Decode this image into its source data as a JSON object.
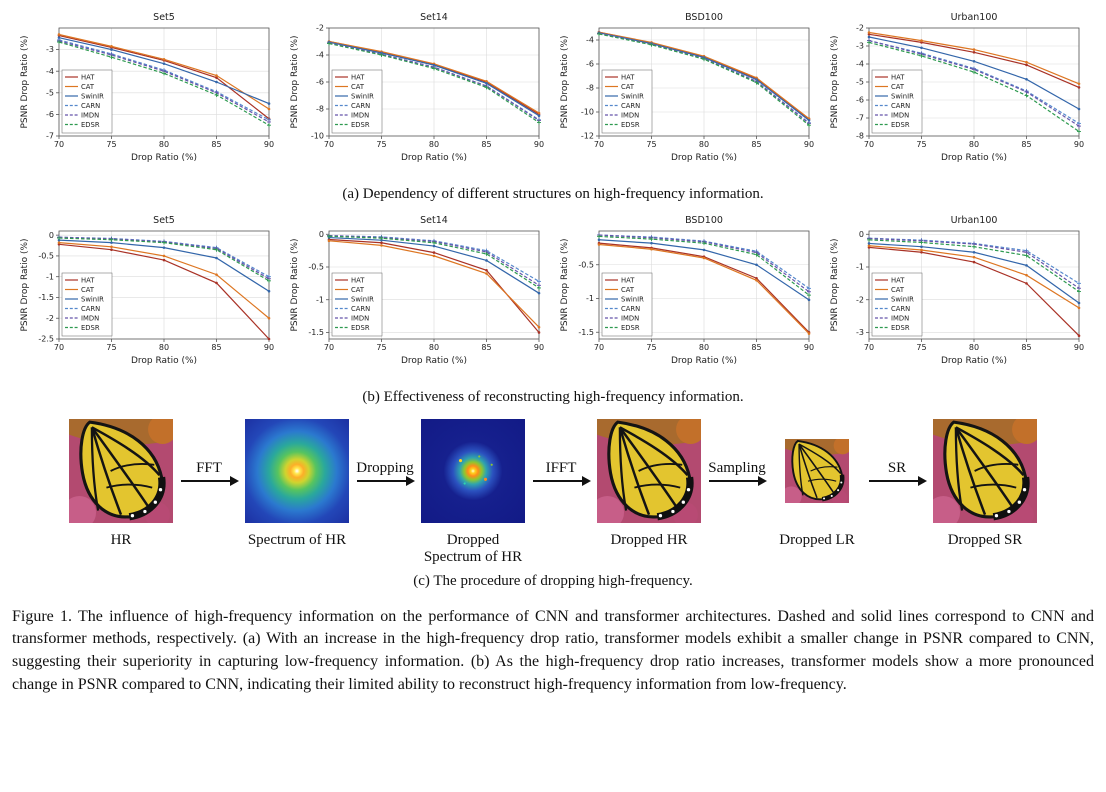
{
  "figure": {
    "caption_a": "(a) Dependency of different structures on high-frequency information.",
    "caption_b": "(b) Effectiveness of reconstructing high-frequency information.",
    "caption_c": "(c) The procedure of dropping high-frequency.",
    "main_caption": "Figure 1. The influence of high-frequency information on the performance of CNN and transformer architectures. Dashed and solid lines correspond to CNN and transformer methods, respectively. (a) With an increase in the high-frequency drop ratio, transformer models exhibit a smaller change in PSNR compared to CNN, suggesting their superiority in capturing low-frequency information. (b) As the high-frequency drop ratio increases, transformer models show a more pronounced change in PSNR compared to CNN, indicating their limited ability to reconstruct high-frequency information from low-frequency."
  },
  "pipeline": {
    "arrows": [
      "FFT",
      "Dropping",
      "IFFT",
      "Sampling",
      "SR"
    ],
    "steps": [
      {
        "label": "HR"
      },
      {
        "label": "Spectrum of HR"
      },
      {
        "label": "Dropped Spectrum of HR"
      },
      {
        "label": "Dropped HR"
      },
      {
        "label": "Dropped LR"
      },
      {
        "label": "Dropped SR"
      }
    ]
  },
  "chart_data": [
    {
      "id": "a-set5",
      "type": "line",
      "title": "Set5",
      "xlabel": "Drop Ratio (%)",
      "ylabel": "PSNR Drop Ratio (%)",
      "x": [
        70,
        75,
        80,
        85,
        90
      ],
      "ylim": [
        -7,
        -2
      ],
      "yticks": [
        -3,
        -4,
        -5,
        -6,
        -7
      ],
      "legend_position": "bottom-left",
      "grid": true,
      "series": [
        {
          "name": "HAT",
          "color": "#a93226",
          "dash": false,
          "values": [
            -2.35,
            -2.9,
            -3.5,
            -4.3,
            -6.2
          ]
        },
        {
          "name": "CAT",
          "color": "#dd7622",
          "dash": false,
          "values": [
            -2.3,
            -2.85,
            -3.45,
            -4.2,
            -5.75
          ]
        },
        {
          "name": "SwinIR",
          "color": "#3366aa",
          "dash": false,
          "values": [
            -2.45,
            -3.0,
            -3.65,
            -4.5,
            -5.5
          ]
        },
        {
          "name": "CARN",
          "color": "#5588cc",
          "dash": true,
          "values": [
            -2.55,
            -3.2,
            -3.95,
            -4.95,
            -6.25
          ]
        },
        {
          "name": "IMDN",
          "color": "#6655aa",
          "dash": true,
          "values": [
            -2.6,
            -3.25,
            -4.0,
            -5.0,
            -6.35
          ]
        },
        {
          "name": "EDSR",
          "color": "#2e9a50",
          "dash": true,
          "values": [
            -2.65,
            -3.35,
            -4.1,
            -5.1,
            -6.5
          ]
        }
      ]
    },
    {
      "id": "a-set14",
      "type": "line",
      "title": "Set14",
      "xlabel": "Drop Ratio (%)",
      "ylabel": "PSNR Drop Ratio (%)",
      "x": [
        70,
        75,
        80,
        85,
        90
      ],
      "ylim": [
        -10,
        -2
      ],
      "yticks": [
        -2,
        -4,
        -6,
        -8,
        -10
      ],
      "legend_position": "bottom-left",
      "grid": true,
      "series": [
        {
          "name": "HAT",
          "color": "#a93226",
          "dash": false,
          "values": [
            -3.0,
            -3.8,
            -4.7,
            -6.0,
            -8.4
          ]
        },
        {
          "name": "CAT",
          "color": "#dd7622",
          "dash": false,
          "values": [
            -3.0,
            -3.75,
            -4.65,
            -5.95,
            -8.3
          ]
        },
        {
          "name": "SwinIR",
          "color": "#3366aa",
          "dash": false,
          "values": [
            -3.05,
            -3.85,
            -4.75,
            -6.1,
            -8.5
          ]
        },
        {
          "name": "CARN",
          "color": "#5588cc",
          "dash": true,
          "values": [
            -3.1,
            -3.95,
            -4.9,
            -6.3,
            -8.8
          ]
        },
        {
          "name": "IMDN",
          "color": "#6655aa",
          "dash": true,
          "values": [
            -3.1,
            -3.95,
            -4.9,
            -6.3,
            -8.85
          ]
        },
        {
          "name": "EDSR",
          "color": "#2e9a50",
          "dash": true,
          "values": [
            -3.15,
            -4.0,
            -5.0,
            -6.4,
            -9.0
          ]
        }
      ]
    },
    {
      "id": "a-bsd100",
      "type": "line",
      "title": "BSD100",
      "xlabel": "Drop Ratio (%)",
      "ylabel": "PSNR Drop Ratio (%)",
      "x": [
        70,
        75,
        80,
        85,
        90
      ],
      "ylim": [
        -12,
        -3
      ],
      "yticks": [
        -4,
        -6,
        -8,
        -10,
        -12
      ],
      "legend_position": "bottom-left",
      "grid": true,
      "series": [
        {
          "name": "HAT",
          "color": "#a93226",
          "dash": false,
          "values": [
            -3.35,
            -4.25,
            -5.4,
            -7.2,
            -10.6
          ]
        },
        {
          "name": "CAT",
          "color": "#dd7622",
          "dash": false,
          "values": [
            -3.35,
            -4.2,
            -5.35,
            -7.15,
            -10.55
          ]
        },
        {
          "name": "SwinIR",
          "color": "#3366aa",
          "dash": false,
          "values": [
            -3.4,
            -4.3,
            -5.45,
            -7.3,
            -10.7
          ]
        },
        {
          "name": "CARN",
          "color": "#5588cc",
          "dash": true,
          "values": [
            -3.45,
            -4.35,
            -5.55,
            -7.45,
            -10.9
          ]
        },
        {
          "name": "IMDN",
          "color": "#6655aa",
          "dash": true,
          "values": [
            -3.45,
            -4.35,
            -5.55,
            -7.45,
            -10.95
          ]
        },
        {
          "name": "EDSR",
          "color": "#2e9a50",
          "dash": true,
          "values": [
            -3.5,
            -4.4,
            -5.6,
            -7.55,
            -11.1
          ]
        }
      ]
    },
    {
      "id": "a-urban100",
      "type": "line",
      "title": "Urban100",
      "xlabel": "Drop Ratio (%)",
      "ylabel": "PSNR Drop Ratio (%)",
      "x": [
        70,
        75,
        80,
        85,
        90
      ],
      "ylim": [
        -8,
        -2
      ],
      "yticks": [
        -2,
        -3,
        -4,
        -5,
        -6,
        -7,
        -8
      ],
      "legend_position": "bottom-left",
      "grid": true,
      "series": [
        {
          "name": "HAT",
          "color": "#a93226",
          "dash": false,
          "values": [
            -2.35,
            -2.8,
            -3.35,
            -4.05,
            -5.3
          ]
        },
        {
          "name": "CAT",
          "color": "#dd7622",
          "dash": false,
          "values": [
            -2.25,
            -2.7,
            -3.2,
            -3.9,
            -5.1
          ]
        },
        {
          "name": "SwinIR",
          "color": "#3366aa",
          "dash": false,
          "values": [
            -2.5,
            -3.1,
            -3.85,
            -4.85,
            -6.5
          ]
        },
        {
          "name": "CARN",
          "color": "#5588cc",
          "dash": true,
          "values": [
            -2.7,
            -3.4,
            -4.25,
            -5.5,
            -7.3
          ]
        },
        {
          "name": "IMDN",
          "color": "#6655aa",
          "dash": true,
          "values": [
            -2.7,
            -3.45,
            -4.3,
            -5.55,
            -7.45
          ]
        },
        {
          "name": "EDSR",
          "color": "#2e9a50",
          "dash": true,
          "values": [
            -2.8,
            -3.55,
            -4.45,
            -5.75,
            -7.75
          ]
        }
      ]
    },
    {
      "id": "b-set5",
      "type": "line",
      "title": "Set5",
      "xlabel": "Drop Ratio (%)",
      "ylabel": "PSNR Drop Ratio (%)",
      "x": [
        70,
        75,
        80,
        85,
        90
      ],
      "ylim": [
        -2.5,
        0.1
      ],
      "yticks": [
        0,
        -0.5,
        -1,
        -1.5,
        -2,
        -2.5
      ],
      "legend_position": "bottom-left",
      "grid": true,
      "series": [
        {
          "name": "HAT",
          "color": "#a93226",
          "dash": false,
          "values": [
            -0.22,
            -0.35,
            -0.6,
            -1.15,
            -2.5
          ]
        },
        {
          "name": "CAT",
          "color": "#dd7622",
          "dash": false,
          "values": [
            -0.18,
            -0.28,
            -0.5,
            -0.95,
            -2.0
          ]
        },
        {
          "name": "SwinIR",
          "color": "#3366aa",
          "dash": false,
          "values": [
            -0.12,
            -0.18,
            -0.3,
            -0.55,
            -1.35
          ]
        },
        {
          "name": "CARN",
          "color": "#5588cc",
          "dash": true,
          "values": [
            -0.05,
            -0.08,
            -0.15,
            -0.3,
            -1.0
          ]
        },
        {
          "name": "IMDN",
          "color": "#6655aa",
          "dash": true,
          "values": [
            -0.05,
            -0.09,
            -0.16,
            -0.32,
            -1.05
          ]
        },
        {
          "name": "EDSR",
          "color": "#2e9a50",
          "dash": true,
          "values": [
            -0.07,
            -0.11,
            -0.18,
            -0.35,
            -1.1
          ]
        }
      ]
    },
    {
      "id": "b-set14",
      "type": "line",
      "title": "Set14",
      "xlabel": "Drop Ratio (%)",
      "ylabel": "PSNR Drop Ratio (%)",
      "x": [
        70,
        75,
        80,
        85,
        90
      ],
      "ylim": [
        -1.6,
        0.05
      ],
      "yticks": [
        0,
        -0.5,
        -1,
        -1.5
      ],
      "legend_position": "bottom-left",
      "grid": true,
      "series": [
        {
          "name": "HAT",
          "color": "#a93226",
          "dash": false,
          "values": [
            -0.08,
            -0.13,
            -0.28,
            -0.55,
            -1.5
          ]
        },
        {
          "name": "CAT",
          "color": "#dd7622",
          "dash": false,
          "values": [
            -0.1,
            -0.17,
            -0.33,
            -0.6,
            -1.42
          ]
        },
        {
          "name": "SwinIR",
          "color": "#3366aa",
          "dash": false,
          "values": [
            -0.05,
            -0.09,
            -0.18,
            -0.4,
            -0.9
          ]
        },
        {
          "name": "CARN",
          "color": "#5588cc",
          "dash": true,
          "values": [
            -0.02,
            -0.04,
            -0.1,
            -0.25,
            -0.72
          ]
        },
        {
          "name": "IMDN",
          "color": "#6655aa",
          "dash": true,
          "values": [
            -0.02,
            -0.05,
            -0.11,
            -0.27,
            -0.78
          ]
        },
        {
          "name": "EDSR",
          "color": "#2e9a50",
          "dash": true,
          "values": [
            -0.03,
            -0.06,
            -0.13,
            -0.3,
            -0.82
          ]
        }
      ]
    },
    {
      "id": "b-bsd100",
      "type": "line",
      "title": "BSD100",
      "xlabel": "Drop Ratio (%)",
      "ylabel": "PSNR Drop Ratio (%)",
      "x": [
        70,
        75,
        80,
        85,
        90
      ],
      "ylim": [
        -1.6,
        0
      ],
      "yticks": [
        -0.5,
        -1,
        -1.5
      ],
      "legend_position": "bottom-left",
      "grid": true,
      "series": [
        {
          "name": "HAT",
          "color": "#a93226",
          "dash": false,
          "values": [
            -0.18,
            -0.25,
            -0.38,
            -0.7,
            -1.5
          ]
        },
        {
          "name": "CAT",
          "color": "#dd7622",
          "dash": false,
          "values": [
            -0.2,
            -0.27,
            -0.4,
            -0.73,
            -1.52
          ]
        },
        {
          "name": "SwinIR",
          "color": "#3366aa",
          "dash": false,
          "values": [
            -0.13,
            -0.18,
            -0.28,
            -0.5,
            -1.02
          ]
        },
        {
          "name": "CARN",
          "color": "#5588cc",
          "dash": true,
          "values": [
            -0.06,
            -0.09,
            -0.15,
            -0.3,
            -0.85
          ]
        },
        {
          "name": "IMDN",
          "color": "#6655aa",
          "dash": true,
          "values": [
            -0.06,
            -0.1,
            -0.16,
            -0.32,
            -0.9
          ]
        },
        {
          "name": "EDSR",
          "color": "#2e9a50",
          "dash": true,
          "values": [
            -0.08,
            -0.12,
            -0.18,
            -0.35,
            -0.95
          ]
        }
      ]
    },
    {
      "id": "b-urban100",
      "type": "line",
      "title": "Urban100",
      "xlabel": "Drop Ratio (%)",
      "ylabel": "PSNR Drop Ratio (%)",
      "x": [
        70,
        75,
        80,
        85,
        90
      ],
      "ylim": [
        -3.2,
        0.1
      ],
      "yticks": [
        0,
        -1,
        -2,
        -3
      ],
      "legend_position": "bottom-left",
      "grid": true,
      "series": [
        {
          "name": "HAT",
          "color": "#a93226",
          "dash": false,
          "values": [
            -0.4,
            -0.55,
            -0.85,
            -1.5,
            -3.1
          ]
        },
        {
          "name": "CAT",
          "color": "#dd7622",
          "dash": false,
          "values": [
            -0.35,
            -0.48,
            -0.7,
            -1.25,
            -2.25
          ]
        },
        {
          "name": "SwinIR",
          "color": "#3366aa",
          "dash": false,
          "values": [
            -0.28,
            -0.38,
            -0.55,
            -0.95,
            -2.1
          ]
        },
        {
          "name": "CARN",
          "color": "#5588cc",
          "dash": true,
          "values": [
            -0.12,
            -0.18,
            -0.28,
            -0.5,
            -1.5
          ]
        },
        {
          "name": "IMDN",
          "color": "#6655aa",
          "dash": true,
          "values": [
            -0.13,
            -0.2,
            -0.3,
            -0.55,
            -1.65
          ]
        },
        {
          "name": "EDSR",
          "color": "#2e9a50",
          "dash": true,
          "values": [
            -0.17,
            -0.25,
            -0.38,
            -0.65,
            -1.75
          ]
        }
      ]
    }
  ]
}
